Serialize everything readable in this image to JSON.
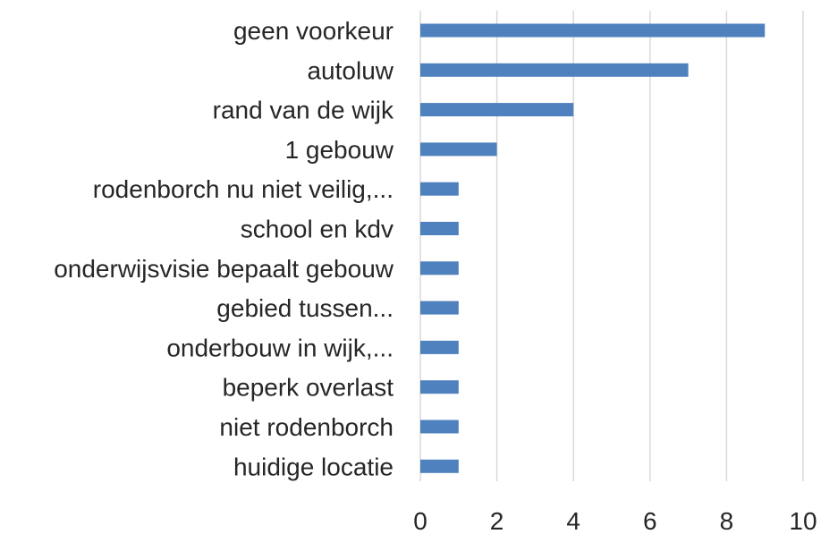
{
  "chart_data": {
    "type": "bar",
    "orientation": "horizontal",
    "categories": [
      "geen voorkeur",
      "autoluw",
      "rand van de wijk",
      "1 gebouw",
      "rodenborch nu niet veilig,...",
      "school en kdv",
      "onderwijsvisie bepaalt gebouw",
      "gebied tussen...",
      "onderbouw in wijk,...",
      "beperk overlast",
      "niet rodenborch",
      "huidige locatie"
    ],
    "values": [
      9,
      7,
      4,
      2,
      1,
      1,
      1,
      1,
      1,
      1,
      1,
      1
    ],
    "xlim": [
      0,
      10
    ],
    "xticks": [
      "0",
      "2",
      "4",
      "6",
      "8",
      "10"
    ],
    "xtick_values": [
      0,
      2,
      4,
      6,
      8,
      10
    ],
    "grid": true,
    "legend": "none",
    "title": "",
    "xlabel": "",
    "ylabel": "",
    "colors": {
      "bar": "#4e81bd",
      "gridline": "#d9d9d9",
      "text": "#262626"
    }
  }
}
